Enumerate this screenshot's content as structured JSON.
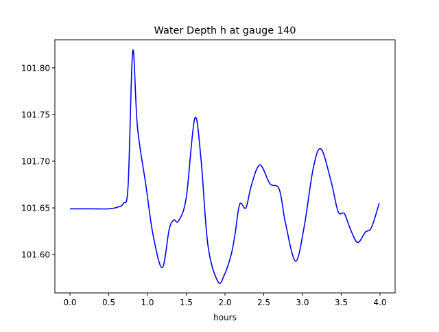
{
  "chart_data": {
    "type": "line",
    "title": "Water Depth h at gauge 140",
    "xlabel": "hours",
    "ylabel": "",
    "xlim": [
      -0.195,
      4.195
    ],
    "ylim": [
      101.559,
      101.83
    ],
    "grid": false,
    "xticks": [
      0.0,
      0.5,
      1.0,
      1.5,
      2.0,
      2.5,
      3.0,
      3.5,
      4.0
    ],
    "xtick_labels": [
      "0.0",
      "0.5",
      "1.0",
      "1.5",
      "2.0",
      "2.5",
      "3.0",
      "3.5",
      "4.0"
    ],
    "yticks": [
      101.6,
      101.65,
      101.7,
      101.75,
      101.8
    ],
    "ytick_labels": [
      "101.60",
      "101.65",
      "101.70",
      "101.75",
      "101.80"
    ],
    "series": [
      {
        "name": "h",
        "color": "#0000ff",
        "x": [
          0.0,
          0.3,
          0.5,
          0.62,
          0.69,
          0.75,
          0.81,
          0.87,
          0.98,
          1.07,
          1.19,
          1.28,
          1.34,
          1.4,
          1.5,
          1.61,
          1.69,
          1.78,
          1.91,
          1.99,
          2.08,
          2.13,
          2.19,
          2.27,
          2.34,
          2.45,
          2.58,
          2.7,
          2.78,
          2.91,
          3.02,
          3.14,
          3.24,
          3.37,
          3.46,
          3.54,
          3.61,
          3.71,
          3.81,
          3.89,
          3.99
        ],
        "y": [
          101.649,
          101.649,
          101.649,
          101.651,
          101.655,
          101.674,
          101.818,
          101.737,
          101.674,
          101.622,
          101.586,
          101.627,
          101.637,
          101.636,
          101.661,
          101.746,
          101.703,
          101.61,
          101.571,
          101.578,
          101.6,
          101.622,
          101.654,
          101.65,
          101.674,
          101.696,
          101.676,
          101.67,
          101.634,
          101.593,
          101.629,
          101.693,
          101.713,
          101.678,
          101.646,
          101.644,
          101.629,
          101.613,
          101.624,
          101.629,
          101.655
        ]
      }
    ]
  }
}
